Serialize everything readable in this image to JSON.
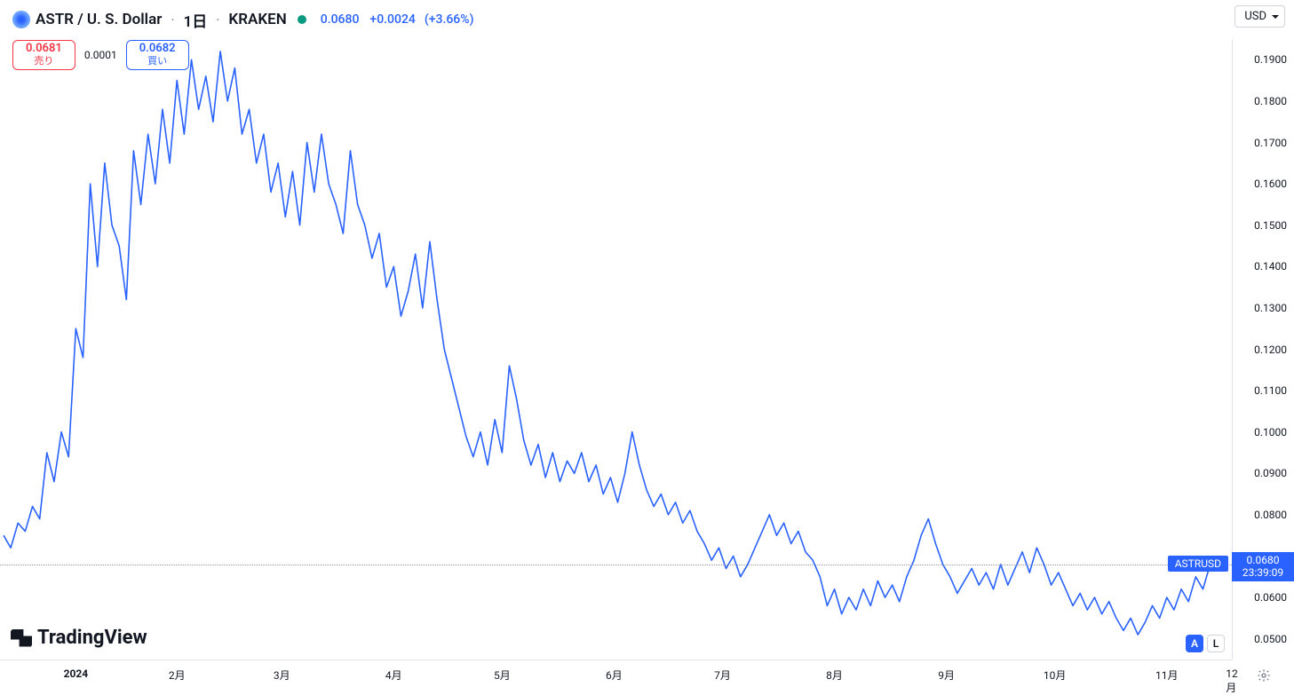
{
  "header": {
    "symbol_pair": "ASTR / U. S. Dollar",
    "interval": "1日",
    "exchange": "KRAKEN",
    "last_price": "0.0680",
    "change_abs": "+0.0024",
    "change_pct": "(+3.66%)",
    "currency": "USD"
  },
  "bidask": {
    "sell_price": "0.0681",
    "sell_label": "売り",
    "spread": "0.0001",
    "buy_price": "0.0682",
    "buy_label": "買い"
  },
  "chart": {
    "type": "line",
    "line_color": "#2962ff",
    "line_width": 1.6,
    "background_color": "#ffffff",
    "grid_color": "#e0e3eb",
    "dotted_color": "#9598a1",
    "ymin": 0.045,
    "ymax": 0.195,
    "current_price": 0.068,
    "current_time": "23:39:09",
    "symbol_tag": "ASTRUSD",
    "yticks": [
      {
        "v": 0.19,
        "label": "0.1900"
      },
      {
        "v": 0.18,
        "label": "0.1800"
      },
      {
        "v": 0.17,
        "label": "0.1700"
      },
      {
        "v": 0.16,
        "label": "0.1600"
      },
      {
        "v": 0.15,
        "label": "0.1500"
      },
      {
        "v": 0.14,
        "label": "0.1400"
      },
      {
        "v": 0.13,
        "label": "0.1300"
      },
      {
        "v": 0.12,
        "label": "0.1200"
      },
      {
        "v": 0.11,
        "label": "0.1100"
      },
      {
        "v": 0.1,
        "label": "0.1000"
      },
      {
        "v": 0.09,
        "label": "0.0900"
      },
      {
        "v": 0.08,
        "label": "0.0800"
      },
      {
        "v": 0.06,
        "label": "0.0600"
      },
      {
        "v": 0.05,
        "label": "0.0500"
      }
    ],
    "xmin": 0,
    "xmax": 340,
    "xticks": [
      {
        "x": 20,
        "label": "2024",
        "bold": true
      },
      {
        "x": 48,
        "label": "2月"
      },
      {
        "x": 77,
        "label": "3月"
      },
      {
        "x": 108,
        "label": "4月"
      },
      {
        "x": 138,
        "label": "5月"
      },
      {
        "x": 169,
        "label": "6月"
      },
      {
        "x": 199,
        "label": "7月"
      },
      {
        "x": 230,
        "label": "8月"
      },
      {
        "x": 261,
        "label": "9月"
      },
      {
        "x": 291,
        "label": "10月"
      },
      {
        "x": 322,
        "label": "11月"
      },
      {
        "x": 340,
        "label": "12月"
      }
    ],
    "series": [
      [
        0,
        0.075
      ],
      [
        2,
        0.072
      ],
      [
        4,
        0.078
      ],
      [
        6,
        0.076
      ],
      [
        8,
        0.082
      ],
      [
        10,
        0.079
      ],
      [
        12,
        0.095
      ],
      [
        14,
        0.088
      ],
      [
        16,
        0.1
      ],
      [
        18,
        0.094
      ],
      [
        20,
        0.125
      ],
      [
        22,
        0.118
      ],
      [
        24,
        0.16
      ],
      [
        26,
        0.14
      ],
      [
        28,
        0.165
      ],
      [
        30,
        0.15
      ],
      [
        32,
        0.145
      ],
      [
        34,
        0.132
      ],
      [
        36,
        0.168
      ],
      [
        38,
        0.155
      ],
      [
        40,
        0.172
      ],
      [
        42,
        0.16
      ],
      [
        44,
        0.178
      ],
      [
        46,
        0.165
      ],
      [
        48,
        0.185
      ],
      [
        50,
        0.172
      ],
      [
        52,
        0.19
      ],
      [
        54,
        0.178
      ],
      [
        56,
        0.186
      ],
      [
        58,
        0.175
      ],
      [
        60,
        0.192
      ],
      [
        62,
        0.18
      ],
      [
        64,
        0.188
      ],
      [
        66,
        0.172
      ],
      [
        68,
        0.178
      ],
      [
        70,
        0.165
      ],
      [
        72,
        0.172
      ],
      [
        74,
        0.158
      ],
      [
        76,
        0.165
      ],
      [
        78,
        0.152
      ],
      [
        80,
        0.163
      ],
      [
        82,
        0.15
      ],
      [
        84,
        0.17
      ],
      [
        86,
        0.158
      ],
      [
        88,
        0.172
      ],
      [
        90,
        0.16
      ],
      [
        92,
        0.155
      ],
      [
        94,
        0.148
      ],
      [
        96,
        0.168
      ],
      [
        98,
        0.155
      ],
      [
        100,
        0.15
      ],
      [
        102,
        0.142
      ],
      [
        104,
        0.148
      ],
      [
        106,
        0.135
      ],
      [
        108,
        0.14
      ],
      [
        110,
        0.128
      ],
      [
        112,
        0.134
      ],
      [
        114,
        0.143
      ],
      [
        116,
        0.13
      ],
      [
        118,
        0.146
      ],
      [
        120,
        0.132
      ],
      [
        122,
        0.12
      ],
      [
        124,
        0.113
      ],
      [
        126,
        0.106
      ],
      [
        128,
        0.099
      ],
      [
        130,
        0.094
      ],
      [
        132,
        0.1
      ],
      [
        134,
        0.092
      ],
      [
        136,
        0.103
      ],
      [
        138,
        0.095
      ],
      [
        140,
        0.116
      ],
      [
        142,
        0.108
      ],
      [
        144,
        0.098
      ],
      [
        146,
        0.092
      ],
      [
        148,
        0.097
      ],
      [
        150,
        0.089
      ],
      [
        152,
        0.095
      ],
      [
        154,
        0.088
      ],
      [
        156,
        0.093
      ],
      [
        158,
        0.09
      ],
      [
        160,
        0.095
      ],
      [
        162,
        0.088
      ],
      [
        164,
        0.092
      ],
      [
        166,
        0.085
      ],
      [
        168,
        0.089
      ],
      [
        170,
        0.083
      ],
      [
        172,
        0.09
      ],
      [
        174,
        0.1
      ],
      [
        176,
        0.092
      ],
      [
        178,
        0.086
      ],
      [
        180,
        0.082
      ],
      [
        182,
        0.085
      ],
      [
        184,
        0.08
      ],
      [
        186,
        0.083
      ],
      [
        188,
        0.078
      ],
      [
        190,
        0.081
      ],
      [
        192,
        0.076
      ],
      [
        194,
        0.073
      ],
      [
        196,
        0.069
      ],
      [
        198,
        0.072
      ],
      [
        200,
        0.067
      ],
      [
        202,
        0.07
      ],
      [
        204,
        0.065
      ],
      [
        206,
        0.068
      ],
      [
        208,
        0.072
      ],
      [
        210,
        0.076
      ],
      [
        212,
        0.08
      ],
      [
        214,
        0.075
      ],
      [
        216,
        0.078
      ],
      [
        218,
        0.073
      ],
      [
        220,
        0.076
      ],
      [
        222,
        0.071
      ],
      [
        224,
        0.069
      ],
      [
        226,
        0.065
      ],
      [
        228,
        0.058
      ],
      [
        230,
        0.062
      ],
      [
        232,
        0.056
      ],
      [
        234,
        0.06
      ],
      [
        236,
        0.057
      ],
      [
        238,
        0.062
      ],
      [
        240,
        0.058
      ],
      [
        242,
        0.064
      ],
      [
        244,
        0.06
      ],
      [
        246,
        0.063
      ],
      [
        248,
        0.059
      ],
      [
        250,
        0.065
      ],
      [
        252,
        0.069
      ],
      [
        254,
        0.075
      ],
      [
        256,
        0.079
      ],
      [
        258,
        0.073
      ],
      [
        260,
        0.068
      ],
      [
        262,
        0.065
      ],
      [
        264,
        0.061
      ],
      [
        266,
        0.064
      ],
      [
        268,
        0.067
      ],
      [
        270,
        0.063
      ],
      [
        272,
        0.066
      ],
      [
        274,
        0.062
      ],
      [
        276,
        0.068
      ],
      [
        278,
        0.063
      ],
      [
        280,
        0.067
      ],
      [
        282,
        0.071
      ],
      [
        284,
        0.066
      ],
      [
        286,
        0.072
      ],
      [
        288,
        0.068
      ],
      [
        290,
        0.063
      ],
      [
        292,
        0.066
      ],
      [
        294,
        0.062
      ],
      [
        296,
        0.058
      ],
      [
        298,
        0.061
      ],
      [
        300,
        0.057
      ],
      [
        302,
        0.06
      ],
      [
        304,
        0.056
      ],
      [
        306,
        0.059
      ],
      [
        308,
        0.055
      ],
      [
        310,
        0.052
      ],
      [
        312,
        0.055
      ],
      [
        314,
        0.051
      ],
      [
        316,
        0.054
      ],
      [
        318,
        0.058
      ],
      [
        320,
        0.055
      ],
      [
        322,
        0.06
      ],
      [
        324,
        0.057
      ],
      [
        326,
        0.062
      ],
      [
        328,
        0.059
      ],
      [
        330,
        0.065
      ],
      [
        332,
        0.062
      ],
      [
        334,
        0.068
      ]
    ]
  },
  "footer": {
    "logo_text": "TradingView",
    "badge_a": "A",
    "badge_l": "L"
  }
}
